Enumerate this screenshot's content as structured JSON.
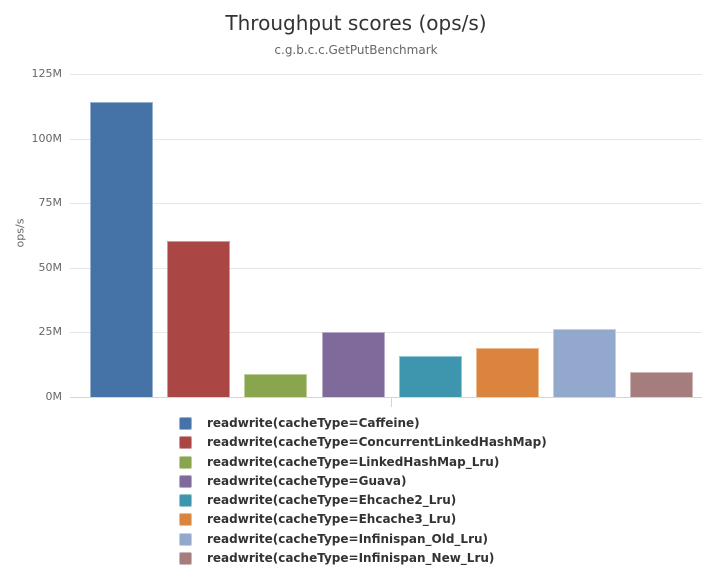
{
  "chart": {
    "title": "Throughput scores (ops/s)",
    "subtitle": "c.g.b.c.c.GetPutBenchmark"
  },
  "chart_data": {
    "type": "bar",
    "title": "Throughput scores (ops/s)",
    "subtitle": "c.g.b.c.c.GetPutBenchmark",
    "xlabel": "",
    "ylabel": "ops/s",
    "ylim": [
      0,
      125000000
    ],
    "y_ticks": [
      0,
      25000000,
      50000000,
      75000000,
      100000000,
      125000000
    ],
    "y_tick_labels": [
      "0M",
      "25M",
      "50M",
      "75M",
      "100M",
      "125M"
    ],
    "grid": true,
    "legend_position": "bottom-left",
    "series": [
      {
        "key": "caffeine",
        "name": "readwrite(cacheType=Caffeine)",
        "value": 114200000,
        "color": "#4572A7"
      },
      {
        "key": "concurrent-linked-hashmap",
        "name": "readwrite(cacheType=ConcurrentLinkedHashMap)",
        "value": 60400000,
        "color": "#AA4643"
      },
      {
        "key": "linked-hashmap-lru",
        "name": "readwrite(cacheType=LinkedHashMap_Lru)",
        "value": 8900000,
        "color": "#89A54E"
      },
      {
        "key": "guava",
        "name": "readwrite(cacheType=Guava)",
        "value": 25200000,
        "color": "#80699B"
      },
      {
        "key": "ehcache2-lru",
        "name": "readwrite(cacheType=Ehcache2_Lru)",
        "value": 15900000,
        "color": "#3D96AE"
      },
      {
        "key": "ehcache3-lru",
        "name": "readwrite(cacheType=Ehcache3_Lru)",
        "value": 19000000,
        "color": "#DB843D"
      },
      {
        "key": "infinispan-old-lru",
        "name": "readwrite(cacheType=Infinispan_Old_Lru)",
        "value": 26200000,
        "color": "#92A8CD"
      },
      {
        "key": "infinispan-new-lru",
        "name": "readwrite(cacheType=Infinispan_New_Lru)",
        "value": 9700000,
        "color": "#A47D7C"
      }
    ]
  }
}
